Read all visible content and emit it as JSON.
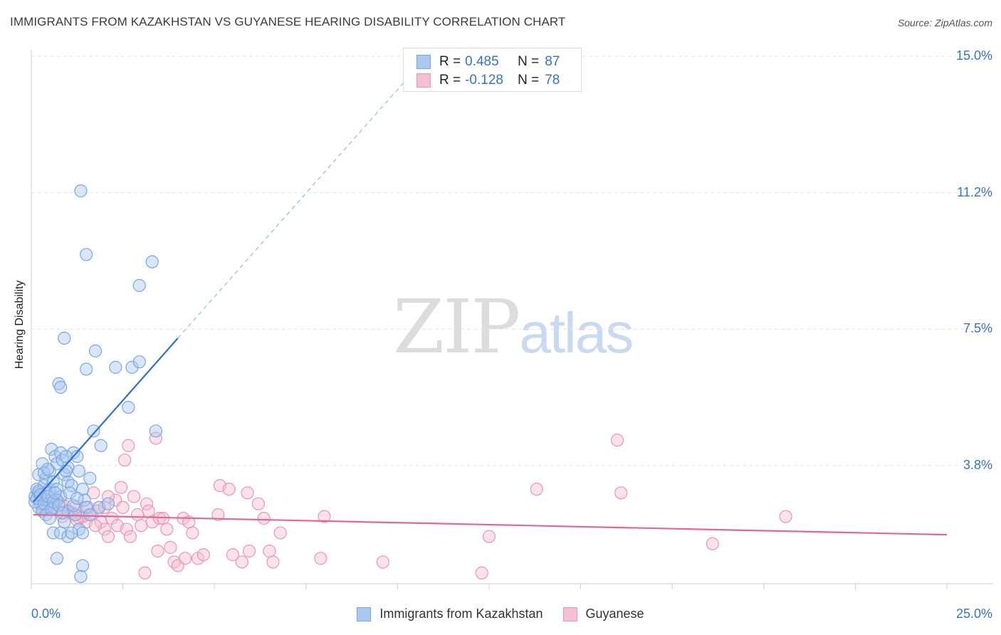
{
  "header": {
    "title": "IMMIGRANTS FROM KAZAKHSTAN VS GUYANESE HEARING DISABILITY CORRELATION CHART",
    "source": "Source: ZipAtlas.com"
  },
  "watermark": {
    "zip": "ZIP",
    "atlas": "atlas"
  },
  "colors": {
    "blue_fill": "#aac8f0",
    "blue_stroke": "#7aa6e0",
    "blue_line": "#2f6fd0",
    "pink_fill": "#f5bfd0",
    "pink_stroke": "#e995b3",
    "pink_line": "#e06994",
    "tick_text": "#3573c9"
  },
  "legend": {
    "series": [
      {
        "r_label": "R =",
        "r_value": "0.485",
        "n_label": "N =",
        "n_value": "87"
      },
      {
        "r_label": "R =",
        "r_value": "-0.128",
        "n_label": "N =",
        "n_value": "78"
      }
    ]
  },
  "bottom_legend": {
    "items": [
      "Immigrants from Kazakhstan",
      "Guyanese"
    ]
  },
  "chart_data": {
    "type": "scatter",
    "title": "IMMIGRANTS FROM KAZAKHSTAN VS GUYANESE HEARING DISABILITY CORRELATION CHART",
    "xlabel": "",
    "ylabel": "Hearing Disability",
    "xlim": [
      0,
      25
    ],
    "ylim": [
      0,
      15.5
    ],
    "x_tick_labels": [
      "0.0%",
      "25.0%"
    ],
    "y_tick_labels": [
      "15.0%",
      "11.2%",
      "7.5%",
      "3.8%"
    ],
    "y_ticks": [
      15.0,
      11.25,
      7.5,
      3.75
    ],
    "grid": true,
    "series": [
      {
        "name": "Immigrants from Kazakhstan",
        "color": "blue",
        "trend": {
          "x0": 0.05,
          "y0": 2.75,
          "x1": 4.0,
          "y1": 7.25,
          "dashed_to_x": 10.5
        },
        "points": [
          [
            0.1,
            2.9
          ],
          [
            0.15,
            3.1
          ],
          [
            0.2,
            3.0
          ],
          [
            0.25,
            2.7
          ],
          [
            0.3,
            2.8
          ],
          [
            0.35,
            3.2
          ],
          [
            0.4,
            3.0
          ],
          [
            0.45,
            2.6
          ],
          [
            0.5,
            3.1
          ],
          [
            0.2,
            3.5
          ],
          [
            0.3,
            3.8
          ],
          [
            0.4,
            3.4
          ],
          [
            0.5,
            3.6
          ],
          [
            0.6,
            3.3
          ],
          [
            0.7,
            3.1
          ],
          [
            0.8,
            2.9
          ],
          [
            0.9,
            3.5
          ],
          [
            1.0,
            3.7
          ],
          [
            0.55,
            4.2
          ],
          [
            0.65,
            4.0
          ],
          [
            0.7,
            3.8
          ],
          [
            0.8,
            4.1
          ],
          [
            0.85,
            3.9
          ],
          [
            0.95,
            3.6
          ],
          [
            1.0,
            3.3
          ],
          [
            1.1,
            3.2
          ],
          [
            1.15,
            4.1
          ],
          [
            1.25,
            4.0
          ],
          [
            1.3,
            3.6
          ],
          [
            1.4,
            3.1
          ],
          [
            1.45,
            2.8
          ],
          [
            1.5,
            2.6
          ],
          [
            1.6,
            2.4
          ],
          [
            1.7,
            4.7
          ],
          [
            1.6,
            3.4
          ],
          [
            1.85,
            2.6
          ],
          [
            1.9,
            4.3
          ],
          [
            2.1,
            2.7
          ],
          [
            0.2,
            2.6
          ],
          [
            0.3,
            2.5
          ],
          [
            0.4,
            2.4
          ],
          [
            0.5,
            2.3
          ],
          [
            0.6,
            2.6
          ],
          [
            0.7,
            2.8
          ],
          [
            0.9,
            2.2
          ],
          [
            1.0,
            2.5
          ],
          [
            1.2,
            2.4
          ],
          [
            1.3,
            2.0
          ],
          [
            1.4,
            1.9
          ],
          [
            0.6,
            1.9
          ],
          [
            0.8,
            1.9
          ],
          [
            1.0,
            1.8
          ],
          [
            1.1,
            1.9
          ],
          [
            1.4,
            1.0
          ],
          [
            0.7,
            1.2
          ],
          [
            1.35,
            0.7
          ],
          [
            1.35,
            11.3
          ],
          [
            1.5,
            9.55
          ],
          [
            3.3,
            9.35
          ],
          [
            2.95,
            8.7
          ],
          [
            0.9,
            7.25
          ],
          [
            1.75,
            6.9
          ],
          [
            1.5,
            6.4
          ],
          [
            2.3,
            6.45
          ],
          [
            2.75,
            6.45
          ],
          [
            2.95,
            6.6
          ],
          [
            0.75,
            6.0
          ],
          [
            0.8,
            5.9
          ],
          [
            2.65,
            5.35
          ],
          [
            3.4,
            4.7
          ],
          [
            0.1,
            2.75
          ],
          [
            0.15,
            2.85
          ],
          [
            0.2,
            3.05
          ],
          [
            0.25,
            2.95
          ],
          [
            0.35,
            2.7
          ],
          [
            0.45,
            2.9
          ],
          [
            0.55,
            2.55
          ],
          [
            0.6,
            2.75
          ],
          [
            0.65,
            3.0
          ],
          [
            0.75,
            2.65
          ],
          [
            0.85,
            2.45
          ],
          [
            1.05,
            3.0
          ],
          [
            1.15,
            2.65
          ],
          [
            1.25,
            2.85
          ],
          [
            0.35,
            3.55
          ],
          [
            0.45,
            3.65
          ],
          [
            0.95,
            4.0
          ]
        ]
      },
      {
        "name": "Guyanese",
        "color": "pink",
        "trend": {
          "x0": 0.05,
          "y0": 2.4,
          "x1": 25.0,
          "y1": 1.85
        },
        "points": [
          [
            0.2,
            2.9
          ],
          [
            0.4,
            2.8
          ],
          [
            0.6,
            2.9
          ],
          [
            0.8,
            2.7
          ],
          [
            1.0,
            2.5
          ],
          [
            1.2,
            2.6
          ],
          [
            1.3,
            2.3
          ],
          [
            1.5,
            2.2
          ],
          [
            1.7,
            3.0
          ],
          [
            1.8,
            2.5
          ],
          [
            1.9,
            2.2
          ],
          [
            2.0,
            2.0
          ],
          [
            2.1,
            1.8
          ],
          [
            2.2,
            2.3
          ],
          [
            2.3,
            2.8
          ],
          [
            2.35,
            2.1
          ],
          [
            2.45,
            3.15
          ],
          [
            2.6,
            2.0
          ],
          [
            2.7,
            1.8
          ],
          [
            2.55,
            3.9
          ],
          [
            2.65,
            4.3
          ],
          [
            2.8,
            2.9
          ],
          [
            2.9,
            2.4
          ],
          [
            3.0,
            2.1
          ],
          [
            3.15,
            2.7
          ],
          [
            3.2,
            2.5
          ],
          [
            3.3,
            2.2
          ],
          [
            3.4,
            4.5
          ],
          [
            3.45,
            1.4
          ],
          [
            3.5,
            2.3
          ],
          [
            3.6,
            2.3
          ],
          [
            3.7,
            2.0
          ],
          [
            3.8,
            1.5
          ],
          [
            3.9,
            1.1
          ],
          [
            4.0,
            1.0
          ],
          [
            4.15,
            2.3
          ],
          [
            4.2,
            1.2
          ],
          [
            4.3,
            2.2
          ],
          [
            4.4,
            1.9
          ],
          [
            4.55,
            1.2
          ],
          [
            4.7,
            1.3
          ],
          [
            5.1,
            2.4
          ],
          [
            5.15,
            3.2
          ],
          [
            5.4,
            3.1
          ],
          [
            5.5,
            1.3
          ],
          [
            5.75,
            1.1
          ],
          [
            5.9,
            3.0
          ],
          [
            5.95,
            1.4
          ],
          [
            6.2,
            2.7
          ],
          [
            6.35,
            2.3
          ],
          [
            6.5,
            1.4
          ],
          [
            6.6,
            1.1
          ],
          [
            6.8,
            1.9
          ],
          [
            7.9,
            1.2
          ],
          [
            8.0,
            2.35
          ],
          [
            9.6,
            1.1
          ],
          [
            12.3,
            0.8
          ],
          [
            12.5,
            1.8
          ],
          [
            13.8,
            3.1
          ],
          [
            16.1,
            3.0
          ],
          [
            16.0,
            4.45
          ],
          [
            18.6,
            1.6
          ],
          [
            20.6,
            2.35
          ],
          [
            3.1,
            0.8
          ],
          [
            0.3,
            2.6
          ],
          [
            0.5,
            2.7
          ],
          [
            0.7,
            2.55
          ],
          [
            0.9,
            2.65
          ],
          [
            1.1,
            2.45
          ],
          [
            1.4,
            2.35
          ],
          [
            1.55,
            2.6
          ],
          [
            1.65,
            2.4
          ],
          [
            2.0,
            2.6
          ],
          [
            2.5,
            2.6
          ],
          [
            2.1,
            2.9
          ],
          [
            1.25,
            2.25
          ],
          [
            0.85,
            2.35
          ],
          [
            1.75,
            2.1
          ]
        ]
      }
    ]
  }
}
